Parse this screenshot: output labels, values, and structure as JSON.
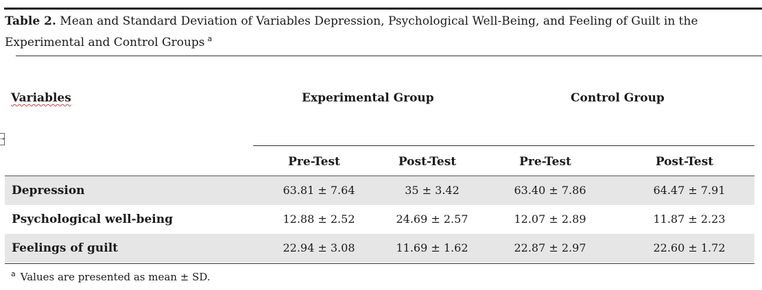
{
  "caption": {
    "label": "Table 2.",
    "text": "Mean and Standard Deviation of Variables Depression, Psychological Well-Being, and Feeling of Guilt in the Experimental and Control Groups",
    "marker": "a"
  },
  "header": {
    "variables": "Variables",
    "experimental": "Experimental Group",
    "control": "Control Group",
    "sub": [
      "Pre-Test",
      "Post-Test",
      "Pre-Test",
      "Post-Test"
    ]
  },
  "rows": [
    {
      "label": "Depression",
      "values": [
        "63.81 ± 7.64",
        "35 ± 3.42",
        "63.40 ± 7.86",
        "64.47 ± 7.91"
      ]
    },
    {
      "label": "Psychological well-being",
      "values": [
        "12.88 ± 2.52",
        "24.69 ± 2.57",
        "12.07 ± 2.89",
        "11.87 ± 2.23"
      ]
    },
    {
      "label": "Feelings of guilt",
      "values": [
        "22.94 ± 3.08",
        "11.69 ± 1.62",
        "22.87 ± 2.97",
        "22.60 ± 1.72"
      ]
    }
  ],
  "footnote": {
    "marker": "a",
    "text": "Values are presented as mean ± SD."
  }
}
